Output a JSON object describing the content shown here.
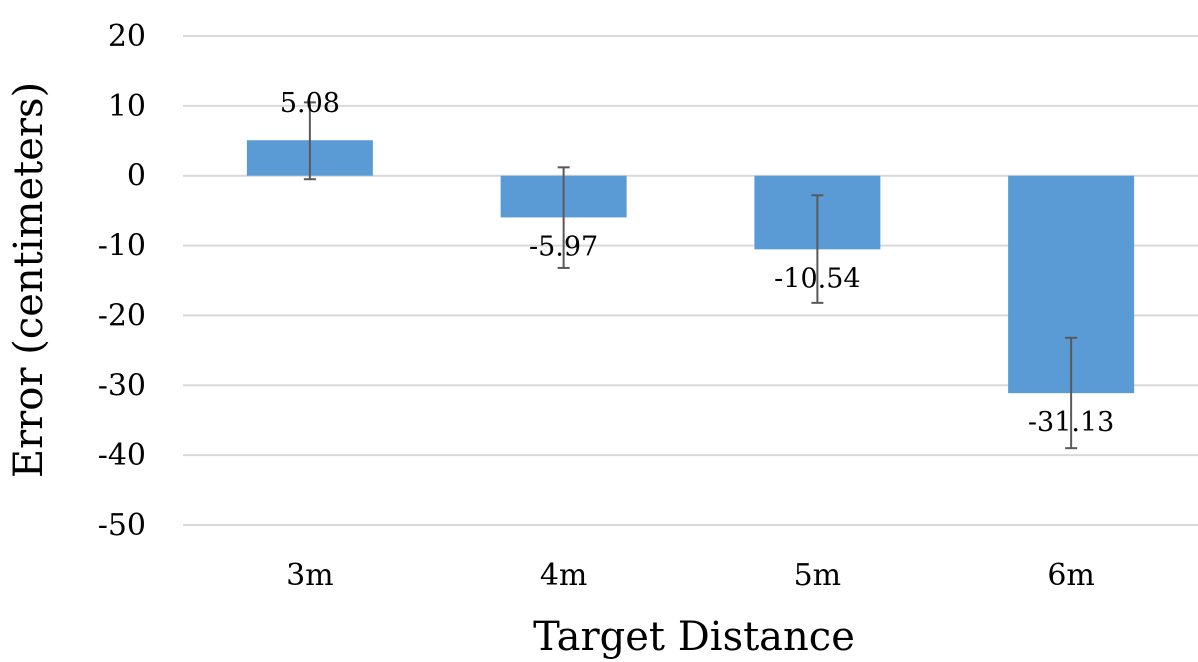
{
  "chart_data": {
    "type": "bar",
    "categories": [
      "3m",
      "4m",
      "5m",
      "6m"
    ],
    "values": [
      5.08,
      -5.97,
      -10.54,
      -31.13
    ],
    "data_labels": [
      "5.08",
      "-5.97",
      "-10.54",
      "-31.13"
    ],
    "error_bars": [
      {
        "low": -0.5,
        "high": 10.5
      },
      {
        "low": -13.2,
        "high": 1.2
      },
      {
        "low": -18.2,
        "high": -2.8
      },
      {
        "low": -39.0,
        "high": -23.2
      }
    ],
    "xlabel": "Target Distance",
    "ylabel": "Error (centimeters)",
    "ylim": [
      -50,
      20
    ],
    "yticks": [
      20,
      10,
      0,
      -10,
      -20,
      -30,
      -40,
      -50
    ],
    "ytick_labels": [
      "20",
      "10",
      "0",
      "-10",
      "-20",
      "-30",
      "-40",
      "-50"
    ],
    "grid": true,
    "legend": "none",
    "colors": {
      "bar": "#5b9bd5",
      "grid": "#d9d9d9",
      "error_bar": "#595959",
      "text": "#000000"
    }
  }
}
